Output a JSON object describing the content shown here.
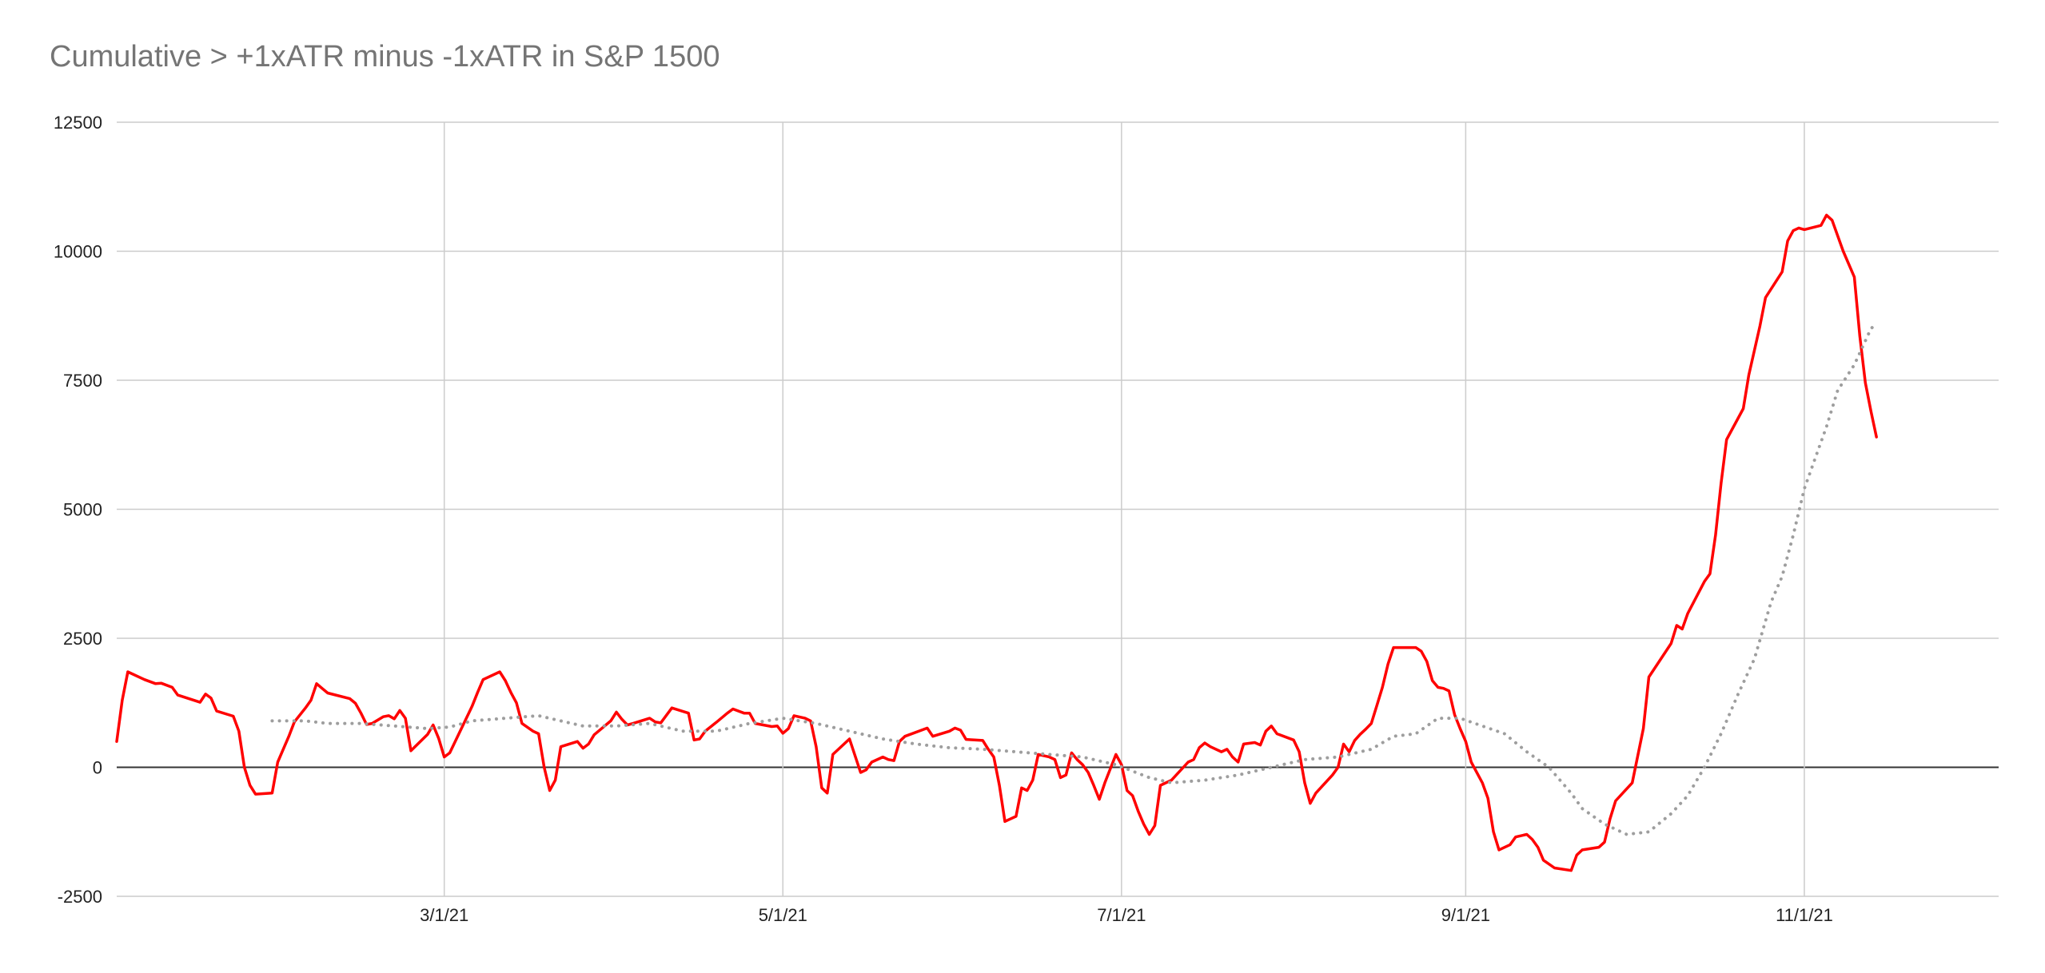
{
  "chart_data": {
    "type": "line",
    "title": "Cumulative > +1xATR minus -1xATR in S&P 1500",
    "xlabel": "",
    "ylabel": "",
    "ylim": [
      -2500,
      12500
    ],
    "y_ticks": [
      12500,
      10000,
      7500,
      5000,
      2500,
      0,
      -2500
    ],
    "x_ticks": [
      "3/1/21",
      "5/1/21",
      "7/1/21",
      "9/1/21",
      "11/1/21"
    ],
    "x_tick_days": [
      59,
      120,
      181,
      243,
      304
    ],
    "xlim_days": [
      0,
      339
    ],
    "grid": true,
    "legend": "none",
    "colors": {
      "series": "#ff0000",
      "average": "#9e9e9e",
      "grid": "#cccccc",
      "zero": "#333333"
    },
    "series": [
      {
        "style": "solid",
        "color": "#ff0000",
        "points": [
          [
            0,
            500
          ],
          [
            1,
            1300
          ],
          [
            2,
            1850
          ],
          [
            5,
            1700
          ],
          [
            7,
            1620
          ],
          [
            8,
            1630
          ],
          [
            10,
            1550
          ],
          [
            11,
            1400
          ],
          [
            13,
            1330
          ],
          [
            15,
            1260
          ],
          [
            16,
            1420
          ],
          [
            17,
            1340
          ],
          [
            18,
            1090
          ],
          [
            21,
            990
          ],
          [
            22,
            700
          ],
          [
            23,
            0
          ],
          [
            24,
            -350
          ],
          [
            25,
            -520
          ],
          [
            28,
            -500
          ],
          [
            29,
            100
          ],
          [
            30,
            350
          ],
          [
            31,
            600
          ],
          [
            32,
            880
          ],
          [
            34,
            1150
          ],
          [
            35,
            1300
          ],
          [
            36,
            1620
          ],
          [
            37,
            1530
          ],
          [
            38,
            1440
          ],
          [
            42,
            1330
          ],
          [
            43,
            1240
          ],
          [
            44,
            1050
          ],
          [
            45,
            830
          ],
          [
            46,
            850
          ],
          [
            48,
            980
          ],
          [
            49,
            1000
          ],
          [
            50,
            940
          ],
          [
            51,
            1100
          ],
          [
            52,
            950
          ],
          [
            53,
            320
          ],
          [
            56,
            640
          ],
          [
            57,
            820
          ],
          [
            58,
            560
          ],
          [
            59,
            200
          ],
          [
            60,
            280
          ],
          [
            64,
            1180
          ],
          [
            65,
            1450
          ],
          [
            66,
            1700
          ],
          [
            69,
            1850
          ],
          [
            70,
            1680
          ],
          [
            71,
            1450
          ],
          [
            72,
            1250
          ],
          [
            73,
            850
          ],
          [
            75,
            700
          ],
          [
            76,
            650
          ],
          [
            77,
            0
          ],
          [
            78,
            -450
          ],
          [
            79,
            -250
          ],
          [
            80,
            400
          ],
          [
            83,
            500
          ],
          [
            84,
            370
          ],
          [
            85,
            450
          ],
          [
            86,
            630
          ],
          [
            89,
            900
          ],
          [
            90,
            1070
          ],
          [
            91,
            930
          ],
          [
            92,
            820
          ],
          [
            93,
            850
          ],
          [
            96,
            950
          ],
          [
            97,
            880
          ],
          [
            98,
            860
          ],
          [
            100,
            1150
          ],
          [
            103,
            1050
          ],
          [
            104,
            530
          ],
          [
            105,
            550
          ],
          [
            106,
            700
          ],
          [
            108,
            870
          ],
          [
            110,
            1050
          ],
          [
            111,
            1130
          ],
          [
            113,
            1050
          ],
          [
            114,
            1050
          ],
          [
            115,
            850
          ],
          [
            118,
            790
          ],
          [
            119,
            800
          ],
          [
            120,
            660
          ],
          [
            121,
            750
          ],
          [
            122,
            1000
          ],
          [
            124,
            950
          ],
          [
            125,
            900
          ],
          [
            126,
            400
          ],
          [
            127,
            -400
          ],
          [
            128,
            -500
          ],
          [
            129,
            250
          ],
          [
            132,
            550
          ],
          [
            134,
            -100
          ],
          [
            135,
            -50
          ],
          [
            136,
            100
          ],
          [
            138,
            200
          ],
          [
            139,
            150
          ],
          [
            140,
            130
          ],
          [
            141,
            500
          ],
          [
            142,
            600
          ],
          [
            146,
            760
          ],
          [
            147,
            600
          ],
          [
            150,
            700
          ],
          [
            151,
            760
          ],
          [
            152,
            720
          ],
          [
            153,
            540
          ],
          [
            156,
            520
          ],
          [
            157,
            350
          ],
          [
            158,
            200
          ],
          [
            159,
            -350
          ],
          [
            160,
            -1050
          ],
          [
            162,
            -950
          ],
          [
            163,
            -400
          ],
          [
            164,
            -450
          ],
          [
            165,
            -250
          ],
          [
            166,
            250
          ],
          [
            168,
            200
          ],
          [
            169,
            150
          ],
          [
            170,
            -200
          ],
          [
            171,
            -150
          ],
          [
            172,
            280
          ],
          [
            173,
            150
          ],
          [
            174,
            50
          ],
          [
            175,
            -100
          ],
          [
            176,
            -350
          ],
          [
            177,
            -620
          ],
          [
            178,
            -300
          ],
          [
            180,
            250
          ],
          [
            181,
            50
          ],
          [
            182,
            -450
          ],
          [
            183,
            -550
          ],
          [
            184,
            -850
          ],
          [
            185,
            -1100
          ],
          [
            186,
            -1300
          ],
          [
            187,
            -1130
          ],
          [
            188,
            -350
          ],
          [
            189,
            -300
          ],
          [
            190,
            -250
          ],
          [
            193,
            100
          ],
          [
            194,
            150
          ],
          [
            195,
            380
          ],
          [
            196,
            470
          ],
          [
            197,
            400
          ],
          [
            199,
            300
          ],
          [
            200,
            350
          ],
          [
            201,
            200
          ],
          [
            202,
            100
          ],
          [
            203,
            450
          ],
          [
            205,
            480
          ],
          [
            206,
            430
          ],
          [
            207,
            700
          ],
          [
            208,
            800
          ],
          [
            209,
            650
          ],
          [
            212,
            530
          ],
          [
            213,
            300
          ],
          [
            214,
            -300
          ],
          [
            215,
            -700
          ],
          [
            216,
            -500
          ],
          [
            219,
            -150
          ],
          [
            220,
            0
          ],
          [
            221,
            450
          ],
          [
            222,
            300
          ],
          [
            223,
            520
          ],
          [
            224,
            640
          ],
          [
            225,
            740
          ],
          [
            226,
            850
          ],
          [
            227,
            1200
          ],
          [
            228,
            1550
          ],
          [
            229,
            2000
          ],
          [
            230,
            2320
          ],
          [
            234,
            2320
          ],
          [
            235,
            2250
          ],
          [
            236,
            2050
          ],
          [
            237,
            1680
          ],
          [
            238,
            1550
          ],
          [
            239,
            1530
          ],
          [
            240,
            1480
          ],
          [
            241,
            1020
          ],
          [
            242,
            750
          ],
          [
            243,
            500
          ],
          [
            244,
            100
          ],
          [
            246,
            -300
          ],
          [
            247,
            -600
          ],
          [
            248,
            -1250
          ],
          [
            249,
            -1600
          ],
          [
            251,
            -1500
          ],
          [
            252,
            -1350
          ],
          [
            254,
            -1300
          ],
          [
            255,
            -1400
          ],
          [
            256,
            -1550
          ],
          [
            257,
            -1800
          ],
          [
            259,
            -1950
          ],
          [
            262,
            -2000
          ],
          [
            263,
            -1700
          ],
          [
            264,
            -1600
          ],
          [
            267,
            -1550
          ],
          [
            268,
            -1450
          ],
          [
            269,
            -1000
          ],
          [
            270,
            -650
          ],
          [
            273,
            -300
          ],
          [
            275,
            750
          ],
          [
            276,
            1750
          ],
          [
            280,
            2400
          ],
          [
            281,
            2750
          ],
          [
            282,
            2680
          ],
          [
            283,
            2980
          ],
          [
            286,
            3600
          ],
          [
            287,
            3750
          ],
          [
            288,
            4500
          ],
          [
            289,
            5500
          ],
          [
            290,
            6350
          ],
          [
            293,
            6950
          ],
          [
            294,
            7600
          ],
          [
            296,
            8550
          ],
          [
            297,
            9100
          ],
          [
            300,
            9600
          ],
          [
            301,
            10200
          ],
          [
            302,
            10400
          ],
          [
            303,
            10450
          ],
          [
            304,
            10420
          ],
          [
            307,
            10500
          ],
          [
            308,
            10700
          ],
          [
            309,
            10600
          ],
          [
            311,
            10000
          ],
          [
            313,
            9500
          ],
          [
            314,
            8350
          ],
          [
            315,
            7450
          ],
          [
            316,
            6900
          ],
          [
            317,
            6400
          ]
        ]
      },
      {
        "style": "dotted",
        "color": "#9e9e9e",
        "points": [
          [
            28,
            900
          ],
          [
            34,
            900
          ],
          [
            38,
            850
          ],
          [
            44,
            850
          ],
          [
            50,
            800
          ],
          [
            56,
            750
          ],
          [
            60,
            780
          ],
          [
            64,
            900
          ],
          [
            70,
            950
          ],
          [
            76,
            1000
          ],
          [
            80,
            900
          ],
          [
            84,
            800
          ],
          [
            90,
            800
          ],
          [
            96,
            850
          ],
          [
            102,
            700
          ],
          [
            108,
            700
          ],
          [
            114,
            850
          ],
          [
            120,
            950
          ],
          [
            126,
            850
          ],
          [
            132,
            700
          ],
          [
            138,
            550
          ],
          [
            144,
            450
          ],
          [
            150,
            380
          ],
          [
            156,
            350
          ],
          [
            162,
            300
          ],
          [
            168,
            250
          ],
          [
            174,
            200
          ],
          [
            180,
            50
          ],
          [
            186,
            -200
          ],
          [
            190,
            -300
          ],
          [
            196,
            -250
          ],
          [
            202,
            -150
          ],
          [
            208,
            0
          ],
          [
            214,
            150
          ],
          [
            220,
            200
          ],
          [
            226,
            350
          ],
          [
            230,
            600
          ],
          [
            234,
            650
          ],
          [
            238,
            950
          ],
          [
            242,
            950
          ],
          [
            246,
            800
          ],
          [
            250,
            650
          ],
          [
            254,
            300
          ],
          [
            258,
            0
          ],
          [
            262,
            -500
          ],
          [
            264,
            -800
          ],
          [
            268,
            -1100
          ],
          [
            272,
            -1300
          ],
          [
            276,
            -1250
          ],
          [
            280,
            -900
          ],
          [
            283,
            -550
          ],
          [
            286,
            0
          ],
          [
            289,
            650
          ],
          [
            292,
            1400
          ],
          [
            295,
            2100
          ],
          [
            298,
            3200
          ],
          [
            300,
            3700
          ],
          [
            302,
            4500
          ],
          [
            304,
            5400
          ],
          [
            306,
            6000
          ],
          [
            308,
            6600
          ],
          [
            310,
            7300
          ],
          [
            313,
            7800
          ],
          [
            316,
            8500
          ],
          [
            317,
            8600
          ]
        ]
      }
    ]
  }
}
